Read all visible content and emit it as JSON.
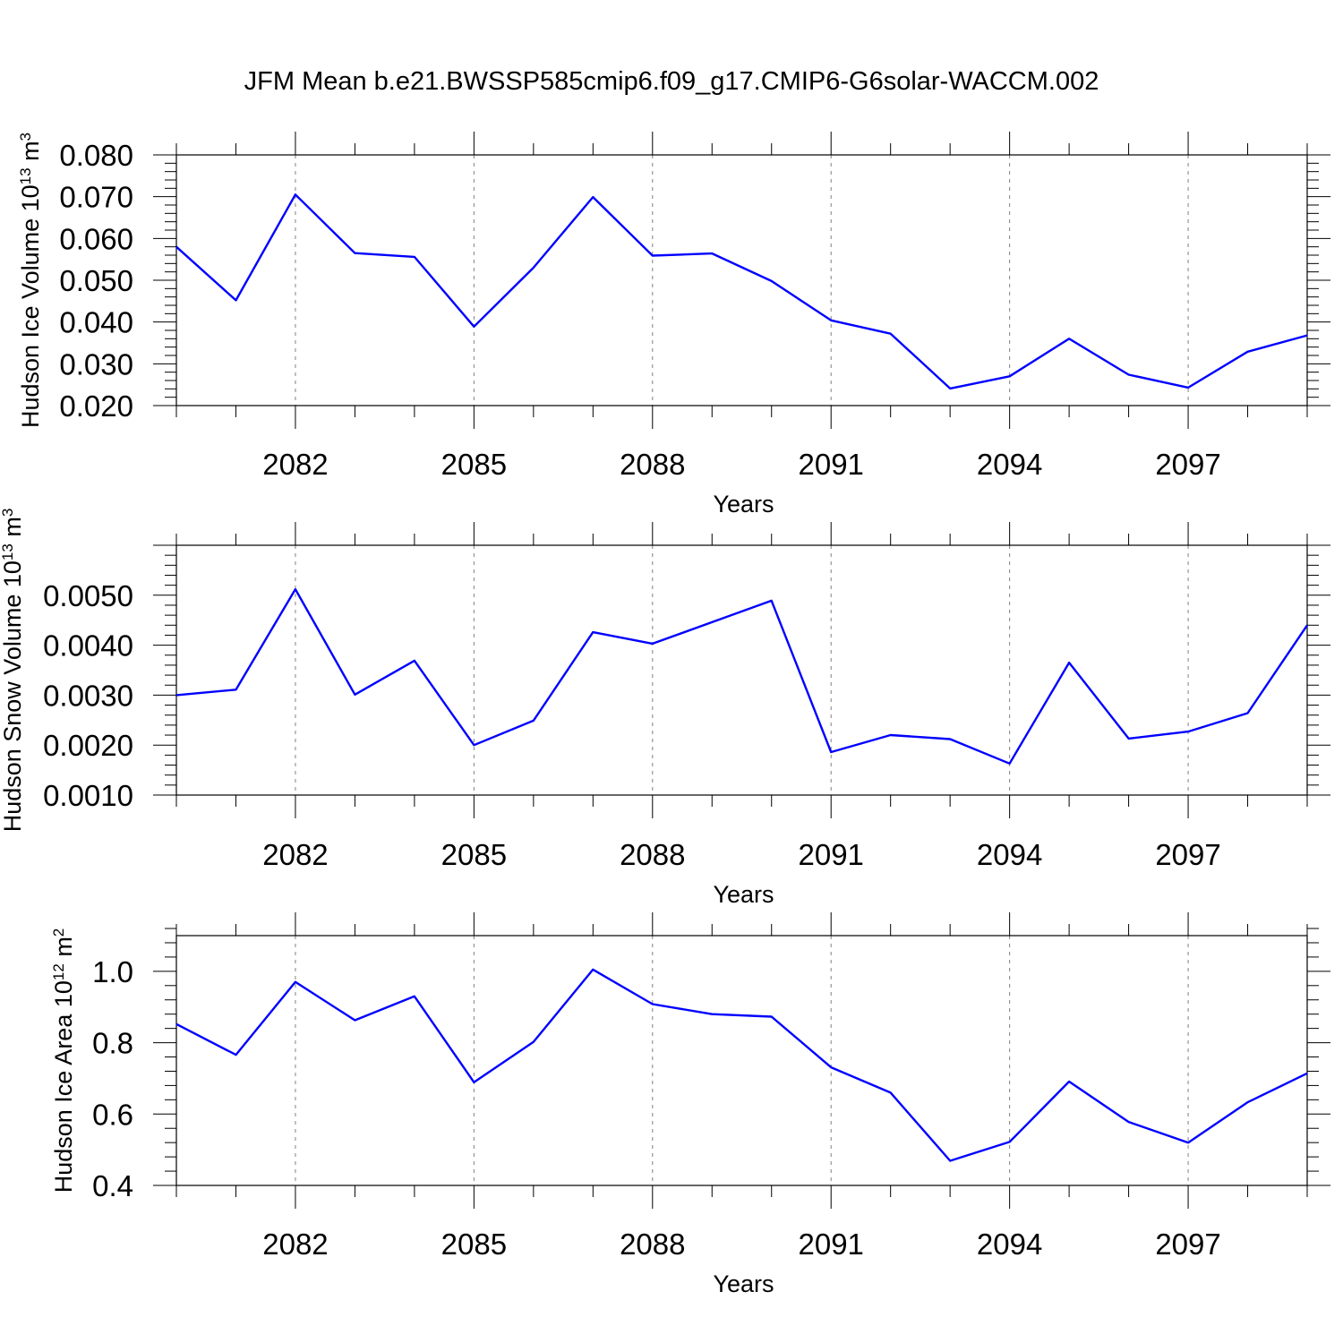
{
  "figure_title": "JFM Mean b.e21.BWSSP585cmip6.f09_g17.CMIP6-G6solar-WACCM.002",
  "colors": {
    "line": "#0000ff",
    "axis": "#000000",
    "grid": "#808080"
  },
  "chart_data": [
    {
      "type": "line",
      "title": "",
      "xlabel": "Years",
      "ylabel": {
        "base": "Hudson Ice Volume 10",
        "exp": "13",
        "unit": " m",
        "unit_exp": "3"
      },
      "x": [
        2080,
        2081,
        2082,
        2083,
        2084,
        2085,
        2086,
        2087,
        2088,
        2089,
        2090,
        2091,
        2092,
        2093,
        2094,
        2095,
        2096,
        2097,
        2098,
        2099
      ],
      "values": [
        0.058,
        0.0452,
        0.0705,
        0.0565,
        0.0556,
        0.0389,
        0.053,
        0.0699,
        0.0559,
        0.0564,
        0.0498,
        0.0404,
        0.0372,
        0.0241,
        0.027,
        0.036,
        0.0274,
        0.0243,
        0.0329,
        0.0368
      ],
      "xlim": [
        2080,
        2099
      ],
      "ylim": [
        0.02,
        0.08
      ],
      "xticks": [
        2082,
        2085,
        2088,
        2091,
        2094,
        2097
      ],
      "xtick_labels": [
        "2082",
        "2085",
        "2088",
        "2091",
        "2094",
        "2097"
      ],
      "yticks": [
        0.02,
        0.03,
        0.04,
        0.05,
        0.06,
        0.07,
        0.08
      ],
      "ytick_labels": [
        "0.020",
        "0.030",
        "0.040",
        "0.050",
        "0.060",
        "0.070",
        "0.080"
      ],
      "grid": "vertical-dashed"
    },
    {
      "type": "line",
      "title": "",
      "xlabel": "Years",
      "ylabel": {
        "base": "Hudson Snow Volume 10",
        "exp": "13",
        "unit": " m",
        "unit_exp": "3"
      },
      "x": [
        2080,
        2081,
        2082,
        2083,
        2084,
        2085,
        2086,
        2087,
        2088,
        2089,
        2090,
        2091,
        2092,
        2093,
        2094,
        2095,
        2096,
        2097,
        2098,
        2099
      ],
      "values": [
        0.003,
        0.00311,
        0.00512,
        0.00301,
        0.00369,
        0.002,
        0.00249,
        0.00426,
        0.00403,
        0.00446,
        0.00489,
        0.00186,
        0.0022,
        0.00212,
        0.00163,
        0.00365,
        0.00213,
        0.00227,
        0.00264,
        0.0044
      ],
      "xlim": [
        2080,
        2099
      ],
      "ylim": [
        0.001,
        0.006
      ],
      "xticks": [
        2082,
        2085,
        2088,
        2091,
        2094,
        2097
      ],
      "xtick_labels": [
        "2082",
        "2085",
        "2088",
        "2091",
        "2094",
        "2097"
      ],
      "yticks": [
        0.001,
        0.002,
        0.003,
        0.004,
        0.005
      ],
      "ytick_labels": [
        "0.0010",
        "0.0020",
        "0.0030",
        "0.0040",
        "0.0050"
      ],
      "grid": "vertical-dashed"
    },
    {
      "type": "line",
      "title": "",
      "xlabel": "Years",
      "ylabel": {
        "base": "Hudson Ice Area 10",
        "exp": "12",
        "unit": " m",
        "unit_exp": "2"
      },
      "x": [
        2080,
        2081,
        2082,
        2083,
        2084,
        2085,
        2086,
        2087,
        2088,
        2089,
        2090,
        2091,
        2092,
        2093,
        2094,
        2095,
        2096,
        2097,
        2098,
        2099
      ],
      "values": [
        0.852,
        0.766,
        0.97,
        0.863,
        0.93,
        0.689,
        0.802,
        1.005,
        0.908,
        0.88,
        0.873,
        0.731,
        0.66,
        0.469,
        0.522,
        0.691,
        0.578,
        0.52,
        0.633,
        0.714
      ],
      "xlim": [
        2080,
        2099
      ],
      "ylim": [
        0.4,
        1.1
      ],
      "xticks": [
        2082,
        2085,
        2088,
        2091,
        2094,
        2097
      ],
      "xtick_labels": [
        "2082",
        "2085",
        "2088",
        "2091",
        "2094",
        "2097"
      ],
      "yticks": [
        0.4,
        0.6,
        0.8,
        1.0
      ],
      "ytick_labels": [
        "0.4",
        "0.6",
        "0.8",
        "1.0"
      ],
      "grid": "vertical-dashed"
    }
  ]
}
